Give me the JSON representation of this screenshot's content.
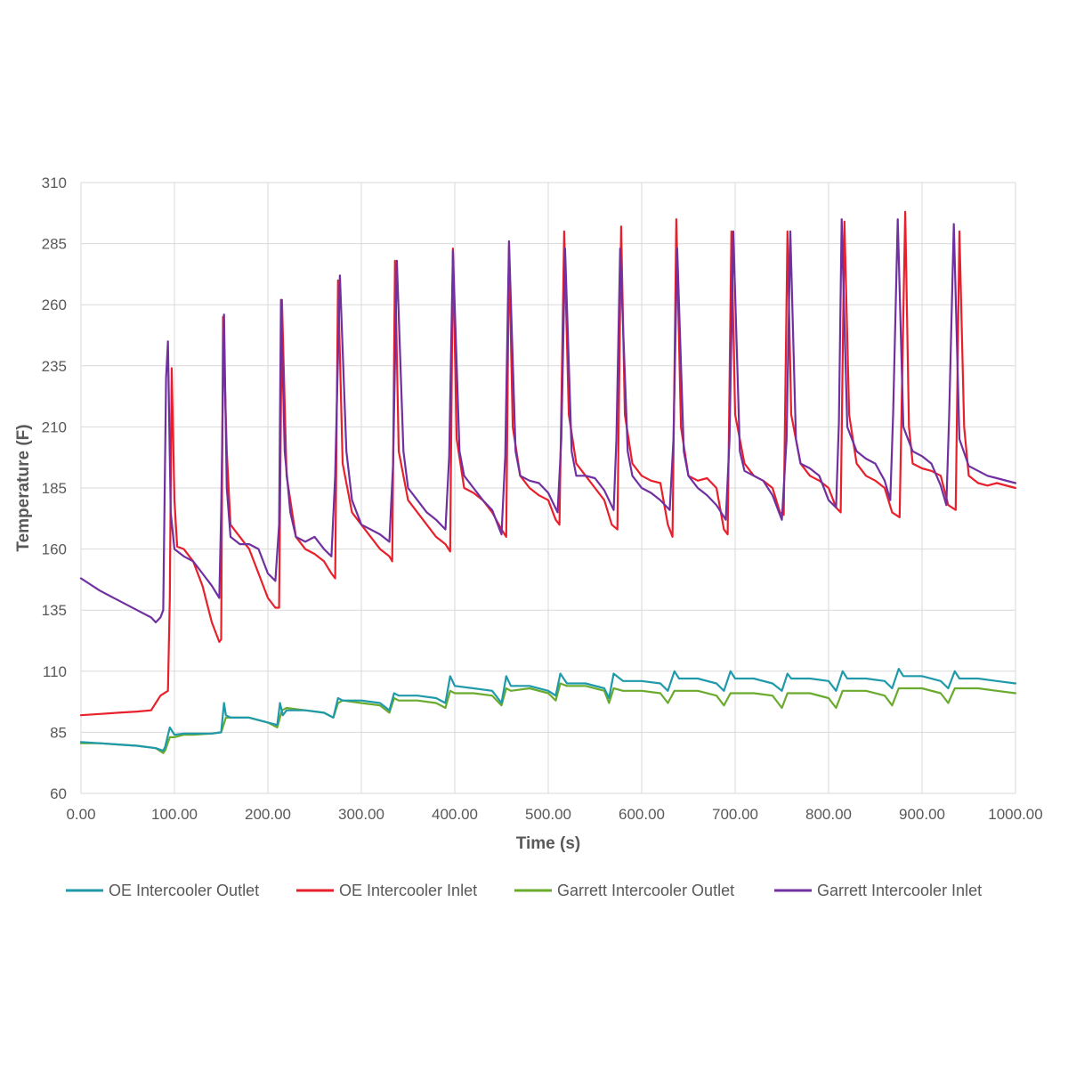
{
  "chart_data": {
    "type": "line",
    "xlabel": "Time (s)",
    "ylabel": "Temperature (F)",
    "xlim": [
      0,
      1000
    ],
    "ylim": [
      60,
      310
    ],
    "x_ticks": [
      0,
      100,
      200,
      300,
      400,
      500,
      600,
      700,
      800,
      900,
      1000
    ],
    "x_tick_labels": [
      "0.00",
      "100.00",
      "200.00",
      "300.00",
      "400.00",
      "500.00",
      "600.00",
      "700.00",
      "800.00",
      "900.00",
      "1000.00"
    ],
    "y_ticks": [
      60,
      85,
      110,
      135,
      160,
      185,
      210,
      235,
      260,
      285,
      310
    ],
    "y_tick_labels": [
      "60",
      "85",
      "110",
      "135",
      "160",
      "185",
      "210",
      "235",
      "260",
      "285",
      "310"
    ],
    "grid": true,
    "legend_position": "bottom",
    "series": [
      {
        "name": "OE Intercooler Outlet",
        "color": "#1f9aaa",
        "x": [
          0,
          20,
          40,
          60,
          80,
          88,
          90,
          95,
          100,
          110,
          120,
          140,
          150,
          153,
          155,
          160,
          180,
          200,
          210,
          213,
          216,
          220,
          240,
          260,
          270,
          275,
          280,
          300,
          320,
          330,
          335,
          340,
          360,
          380,
          390,
          395,
          400,
          420,
          440,
          450,
          455,
          460,
          480,
          500,
          508,
          513,
          520,
          540,
          560,
          565,
          570,
          580,
          600,
          620,
          628,
          635,
          640,
          660,
          680,
          688,
          695,
          700,
          720,
          740,
          750,
          756,
          760,
          780,
          800,
          808,
          815,
          820,
          840,
          860,
          868,
          875,
          880,
          900,
          920,
          928,
          935,
          940,
          960,
          980,
          1000
        ],
        "y": [
          81,
          80.5,
          80,
          79.5,
          78.5,
          77.5,
          79,
          87,
          84,
          84.5,
          84.5,
          84.5,
          85,
          97,
          92,
          91,
          91,
          89,
          88,
          97,
          92,
          94,
          94,
          93,
          91,
          99,
          98,
          98,
          97,
          94,
          101,
          100,
          100,
          99,
          97,
          108,
          104,
          103,
          102,
          97,
          108,
          104,
          104,
          102,
          100,
          109,
          105,
          105,
          103,
          99,
          109,
          106,
          106,
          105,
          102,
          110,
          107,
          107,
          105,
          102,
          110,
          107,
          107,
          105,
          102,
          109,
          107,
          107,
          106,
          102,
          110,
          107,
          107,
          106,
          103,
          111,
          108,
          108,
          106,
          103,
          110,
          107,
          107,
          106,
          105
        ]
      },
      {
        "name": "OE Intercooler Inlet",
        "color": "#e8202b",
        "x": [
          0,
          20,
          40,
          60,
          75,
          85,
          93,
          95,
          97,
          100,
          103,
          110,
          120,
          130,
          140,
          148,
          150,
          152,
          156,
          160,
          170,
          180,
          190,
          200,
          208,
          212,
          215,
          220,
          230,
          240,
          250,
          260,
          268,
          272,
          275,
          280,
          290,
          300,
          310,
          320,
          330,
          333,
          336,
          340,
          350,
          360,
          370,
          380,
          390,
          395,
          398,
          402,
          410,
          420,
          430,
          440,
          450,
          455,
          458,
          462,
          470,
          480,
          490,
          500,
          508,
          512,
          517,
          522,
          530,
          540,
          550,
          560,
          568,
          574,
          578,
          582,
          590,
          600,
          610,
          620,
          628,
          633,
          637,
          642,
          650,
          660,
          670,
          680,
          688,
          692,
          696,
          700,
          710,
          720,
          730,
          740,
          748,
          752,
          756,
          760,
          770,
          780,
          790,
          800,
          808,
          813,
          817,
          822,
          830,
          840,
          850,
          860,
          868,
          876,
          882,
          886,
          890,
          900,
          910,
          920,
          928,
          936,
          940,
          945,
          950,
          960,
          970,
          980,
          1000
        ],
        "y": [
          92,
          92.5,
          93,
          93.5,
          94,
          100,
          102,
          140,
          234,
          180,
          161,
          160,
          155,
          145,
          130,
          122,
          123,
          255,
          200,
          170,
          165,
          160,
          150,
          140,
          136,
          136,
          262,
          190,
          165,
          160,
          158,
          155,
          150,
          148,
          270,
          195,
          175,
          170,
          165,
          160,
          157,
          155,
          278,
          200,
          180,
          175,
          170,
          165,
          162,
          159,
          283,
          205,
          185,
          183,
          180,
          175,
          168,
          165,
          284,
          210,
          190,
          185,
          182,
          180,
          172,
          170,
          290,
          215,
          195,
          190,
          185,
          180,
          170,
          168,
          292,
          215,
          195,
          190,
          188,
          187,
          170,
          165,
          295,
          210,
          190,
          188,
          189,
          185,
          168,
          166,
          290,
          215,
          195,
          190,
          188,
          185,
          175,
          174,
          290,
          215,
          195,
          190,
          188,
          185,
          177,
          175,
          294,
          215,
          195,
          190,
          188,
          185,
          175,
          173,
          298,
          210,
          195,
          193,
          192,
          190,
          178,
          176,
          290,
          210,
          190,
          187,
          186,
          187,
          185
        ]
      },
      {
        "name": "Garrett Intercooler Outlet",
        "color": "#6aab2e",
        "x": [
          0,
          20,
          40,
          60,
          80,
          88,
          90,
          95,
          100,
          110,
          120,
          140,
          150,
          155,
          160,
          180,
          200,
          210,
          215,
          220,
          240,
          260,
          270,
          275,
          280,
          300,
          320,
          330,
          335,
          340,
          360,
          380,
          390,
          395,
          400,
          420,
          440,
          450,
          455,
          460,
          480,
          500,
          508,
          513,
          520,
          540,
          560,
          565,
          570,
          580,
          600,
          620,
          628,
          635,
          640,
          660,
          680,
          688,
          695,
          700,
          720,
          740,
          750,
          756,
          760,
          780,
          800,
          808,
          815,
          820,
          840,
          860,
          868,
          875,
          880,
          900,
          920,
          928,
          935,
          940,
          960,
          980,
          1000
        ],
        "y": [
          80.5,
          80.5,
          80,
          79.5,
          78.5,
          76.5,
          77.5,
          83,
          83,
          84,
          84,
          84.5,
          85,
          91,
          91,
          91,
          89,
          87,
          94,
          95,
          94,
          93,
          91,
          97,
          98,
          97,
          96,
          93,
          99,
          98,
          98,
          97,
          95,
          102,
          101,
          101,
          100,
          96,
          103,
          102,
          103,
          101,
          98,
          105,
          104,
          104,
          102,
          97,
          103,
          102,
          102,
          101,
          97,
          102,
          102,
          102,
          100,
          96,
          101,
          101,
          101,
          100,
          95,
          101,
          101,
          101,
          99,
          95,
          102,
          102,
          102,
          100,
          96,
          103,
          103,
          103,
          101,
          97,
          103,
          103,
          103,
          102,
          101
        ]
      },
      {
        "name": "Garrett Intercooler Inlet",
        "color": "#7030a0",
        "x": [
          0,
          20,
          40,
          60,
          75,
          80,
          85,
          88,
          91,
          93,
          96,
          100,
          110,
          120,
          130,
          140,
          148,
          150,
          153,
          156,
          160,
          170,
          180,
          190,
          200,
          208,
          212,
          214,
          218,
          224,
          230,
          240,
          250,
          260,
          268,
          272,
          277,
          284,
          290,
          300,
          310,
          320,
          330,
          334,
          338,
          345,
          350,
          360,
          370,
          380,
          390,
          394,
          398,
          405,
          410,
          420,
          430,
          440,
          450,
          454,
          458,
          465,
          470,
          480,
          490,
          500,
          510,
          514,
          518,
          525,
          530,
          540,
          550,
          560,
          570,
          573,
          577,
          585,
          590,
          600,
          610,
          620,
          630,
          634,
          638,
          645,
          650,
          660,
          670,
          680,
          690,
          694,
          698,
          705,
          710,
          720,
          730,
          740,
          750,
          755,
          759,
          765,
          770,
          780,
          790,
          800,
          808,
          811,
          814,
          820,
          830,
          840,
          850,
          860,
          866,
          869,
          874,
          880,
          890,
          900,
          910,
          920,
          926,
          929,
          934,
          940,
          950,
          960,
          970,
          980,
          1000
        ],
        "y": [
          148,
          143,
          139,
          135,
          132,
          130,
          132,
          135,
          230,
          245,
          175,
          160,
          157,
          155,
          150,
          145,
          140,
          175,
          256,
          185,
          165,
          162,
          162,
          160,
          150,
          147,
          170,
          262,
          200,
          175,
          165,
          163,
          165,
          160,
          157,
          190,
          272,
          200,
          180,
          170,
          168,
          166,
          163,
          195,
          278,
          200,
          185,
          180,
          175,
          172,
          168,
          198,
          282,
          200,
          190,
          185,
          180,
          176,
          166,
          198,
          286,
          200,
          190,
          188,
          187,
          183,
          175,
          205,
          283,
          200,
          190,
          190,
          189,
          184,
          176,
          205,
          283,
          200,
          190,
          185,
          183,
          180,
          176,
          205,
          283,
          200,
          190,
          185,
          182,
          178,
          172,
          205,
          290,
          200,
          192,
          190,
          188,
          182,
          172,
          205,
          290,
          205,
          195,
          193,
          190,
          180,
          177,
          212,
          295,
          210,
          200,
          197,
          195,
          188,
          180,
          215,
          295,
          210,
          200,
          198,
          195,
          186,
          178,
          215,
          293,
          205,
          194,
          192,
          190,
          189,
          187
        ]
      }
    ]
  }
}
